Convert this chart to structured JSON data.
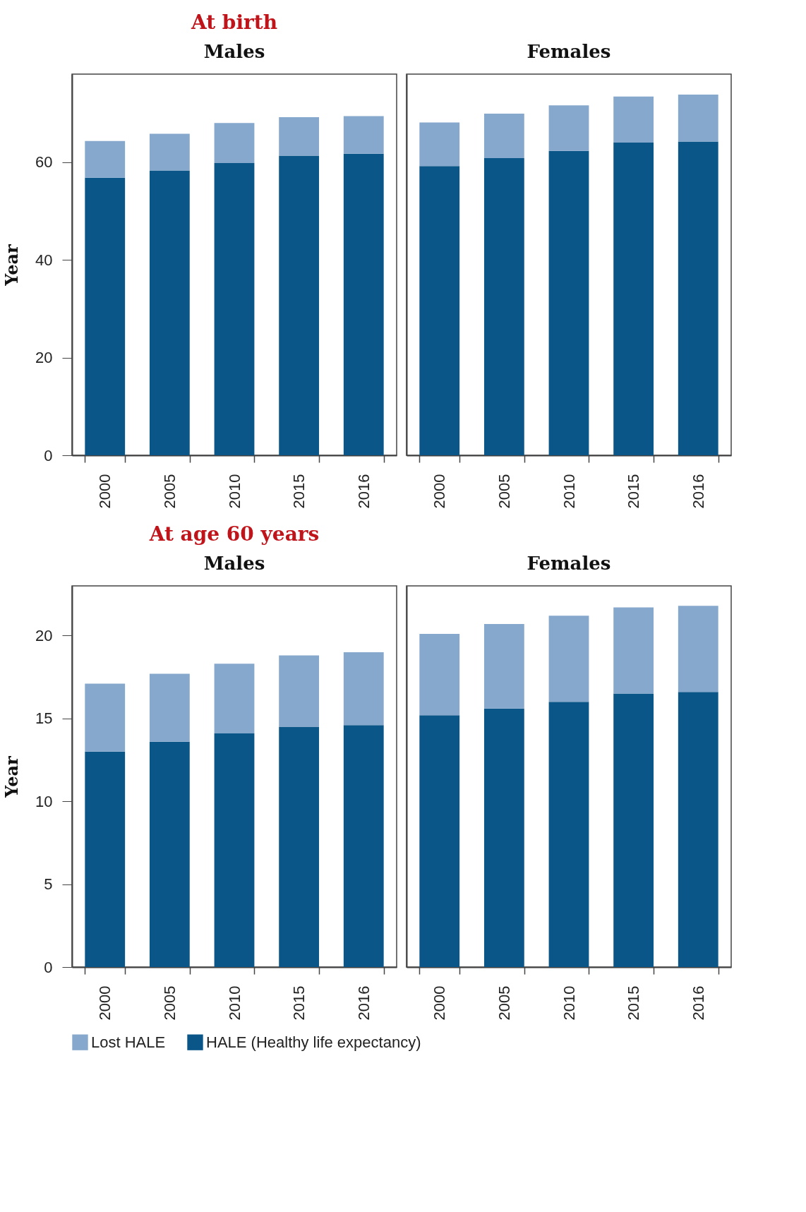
{
  "chart_data": [
    {
      "type": "bar",
      "title": "At birth",
      "subtitle": "Males",
      "ylabel": "Year",
      "categories": [
        "2000",
        "2005",
        "2010",
        "2015",
        "2016"
      ],
      "stacked": true,
      "ylim": [
        0,
        78
      ],
      "yticks": [
        0,
        20,
        40,
        60
      ],
      "series": [
        {
          "color": "#0b5689",
          "values": [
            56.8,
            58.3,
            59.8,
            61.3,
            61.7
          ]
        },
        {
          "color": "#86a8cc",
          "values": [
            7.5,
            7.5,
            8.2,
            7.9,
            7.7
          ]
        }
      ]
    },
    {
      "type": "bar",
      "subtitle": "Females",
      "categories": [
        "2000",
        "2005",
        "2010",
        "2015",
        "2016"
      ],
      "stacked": true,
      "ylim": [
        0,
        78
      ],
      "tick_labels": "x",
      "series": [
        {
          "color": "#0b5689",
          "values": [
            59.2,
            60.8,
            62.3,
            64.0,
            64.2
          ]
        },
        {
          "color": "#86a8cc",
          "values": [
            8.9,
            9.1,
            9.3,
            9.4,
            9.6
          ]
        }
      ]
    },
    {
      "type": "bar",
      "title": "At age 60 years",
      "subtitle": "Males",
      "ylabel": "Year",
      "categories": [
        "2000",
        "2005",
        "2010",
        "2015",
        "2016"
      ],
      "stacked": true,
      "ylim": [
        0,
        23
      ],
      "yticks": [
        0,
        5,
        10,
        15,
        20
      ],
      "legend": "bottom",
      "series": [
        {
          "name": "HALE (Healthy life expectancy)",
          "color": "#0b5689",
          "values": [
            13.0,
            13.6,
            14.1,
            14.5,
            14.6
          ]
        },
        {
          "name": "Lost HALE",
          "color": "#86a8cc",
          "values": [
            4.1,
            4.1,
            4.2,
            4.3,
            4.4
          ]
        }
      ]
    },
    {
      "type": "bar",
      "subtitle": "Females",
      "categories": [
        "2000",
        "2005",
        "2010",
        "2015",
        "2016"
      ],
      "stacked": true,
      "ylim": [
        0,
        23
      ],
      "tick_labels": "x",
      "series": [
        {
          "color": "#0b5689",
          "values": [
            15.2,
            15.6,
            16.0,
            16.5,
            16.6
          ]
        },
        {
          "color": "#86a8cc",
          "values": [
            4.9,
            5.1,
            5.2,
            5.2,
            5.2
          ]
        }
      ]
    }
  ]
}
